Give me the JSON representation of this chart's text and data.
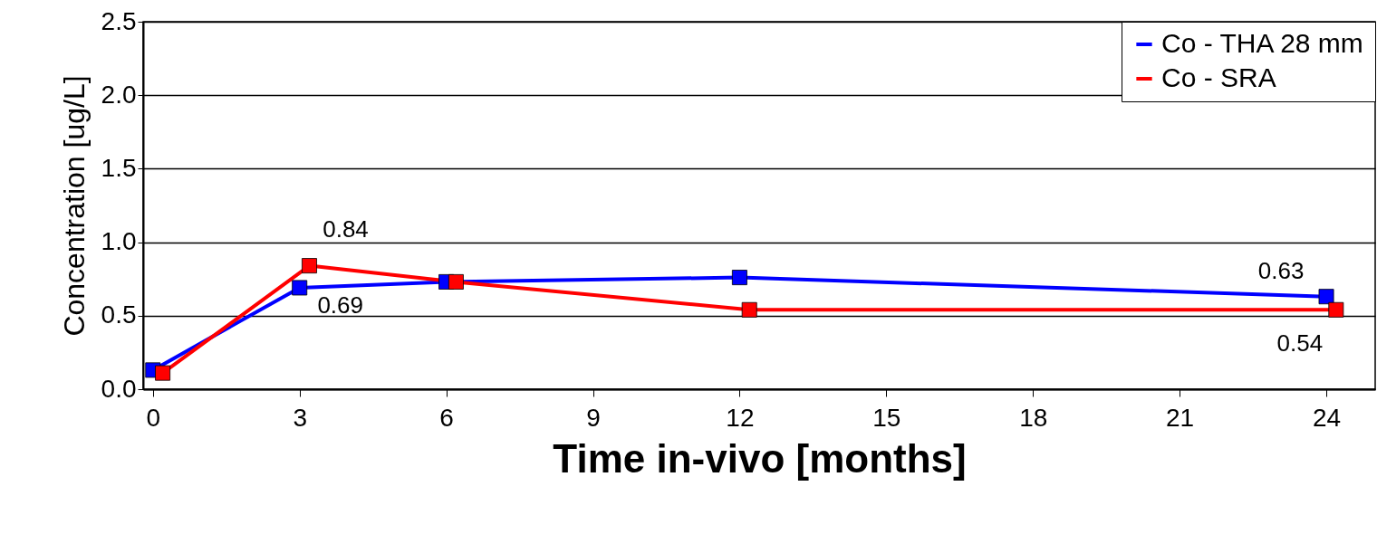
{
  "chart_data": {
    "type": "line",
    "xlabel": "Time in-vivo [months]",
    "ylabel": "Concentration [ug/L]",
    "xlim": [
      -0.2,
      25
    ],
    "xticks": [
      0,
      3,
      6,
      9,
      12,
      15,
      18,
      21,
      24
    ],
    "ylim": [
      0,
      2.5
    ],
    "yticks": [
      {
        "value": 0,
        "label": "0.0"
      },
      0.5,
      {
        "value": 1,
        "label": "1.0"
      },
      1.5,
      {
        "value": 2,
        "label": "2.0"
      },
      2.5
    ],
    "grid": "y",
    "legend": "top right",
    "marker": "square",
    "line_style": "solid",
    "series": [
      {
        "name": "Co - THA 28 mm",
        "color": "#0000ff",
        "x": [
          0,
          3,
          6,
          12,
          24
        ],
        "values": [
          0.13,
          0.69,
          0.73,
          0.76,
          0.63
        ],
        "value_labels": [
          null,
          "0.69",
          null,
          null,
          "0.63"
        ]
      },
      {
        "name": "Co - SRA",
        "color": "#ff0000",
        "x": [
          0.2,
          3.2,
          6.2,
          12.2,
          24.2
        ],
        "values": [
          0.11,
          0.84,
          0.73,
          0.54,
          0.54
        ],
        "value_labels": [
          null,
          "0.84",
          null,
          null,
          "0.54"
        ]
      }
    ]
  }
}
